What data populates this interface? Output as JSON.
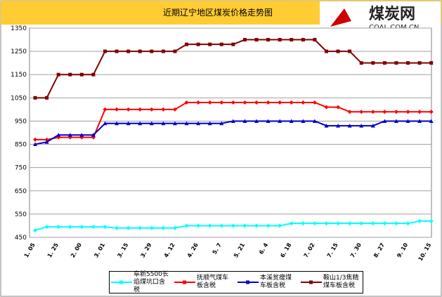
{
  "logo": {
    "name": "煤炭网",
    "domain": "COAL.COM.CN"
  },
  "chart_data": {
    "type": "line",
    "title": "近期辽宁地区煤炭价格走势图",
    "categories": [
      "1. 05",
      null,
      "1. 25",
      null,
      "2. 00",
      null,
      "3. 01",
      null,
      "3. 15",
      null,
      "3. 29",
      null,
      "4. 12",
      null,
      "4. 26",
      null,
      "5. 7",
      null,
      "5. 21",
      null,
      "6. 4",
      null,
      "6. 18",
      null,
      "7. 02",
      null,
      "7. 15",
      null,
      "7. 30",
      null,
      "8. 27",
      null,
      "9. 10",
      null,
      "10. 15"
    ],
    "ylim": [
      450,
      1350
    ],
    "yticks": [
      450,
      550,
      650,
      750,
      850,
      950,
      1050,
      1150,
      1250,
      1350
    ],
    "grid": true,
    "series": [
      {
        "name": "阜新5500长焰煤坑口含税",
        "color": "#00ffff",
        "values": [
          480,
          495,
          495,
          495,
          495,
          495,
          495,
          490,
          490,
          490,
          490,
          490,
          490,
          500,
          500,
          500,
          500,
          500,
          500,
          500,
          500,
          500,
          510,
          510,
          510,
          510,
          510,
          510,
          510,
          510,
          510,
          510,
          510,
          520,
          520
        ]
      },
      {
        "name": "抚顺气煤车板含税",
        "color": "#ff0000",
        "values": [
          870,
          870,
          880,
          880,
          880,
          880,
          1000,
          1000,
          1000,
          1000,
          1000,
          1000,
          1000,
          1030,
          1030,
          1030,
          1030,
          1030,
          1030,
          1030,
          1030,
          1030,
          1030,
          1030,
          1030,
          1010,
          1010,
          990,
          990,
          990,
          990,
          990,
          990,
          990,
          990
        ]
      },
      {
        "name": "本溪贫瘦煤车板含税",
        "color": "#0000cc",
        "values": [
          850,
          860,
          890,
          890,
          890,
          890,
          940,
          940,
          940,
          940,
          940,
          940,
          940,
          940,
          940,
          940,
          940,
          950,
          950,
          950,
          950,
          950,
          950,
          950,
          950,
          930,
          930,
          930,
          930,
          930,
          950,
          950,
          950,
          950,
          950
        ]
      },
      {
        "name": "鞍山1/3焦精煤车板含税",
        "color": "#800000",
        "values": [
          1050,
          1050,
          1150,
          1150,
          1150,
          1150,
          1250,
          1250,
          1250,
          1250,
          1250,
          1250,
          1250,
          1280,
          1280,
          1280,
          1280,
          1280,
          1300,
          1300,
          1300,
          1300,
          1300,
          1300,
          1300,
          1250,
          1250,
          1250,
          1200,
          1200,
          1200,
          1200,
          1200,
          1200,
          1200
        ]
      }
    ]
  }
}
